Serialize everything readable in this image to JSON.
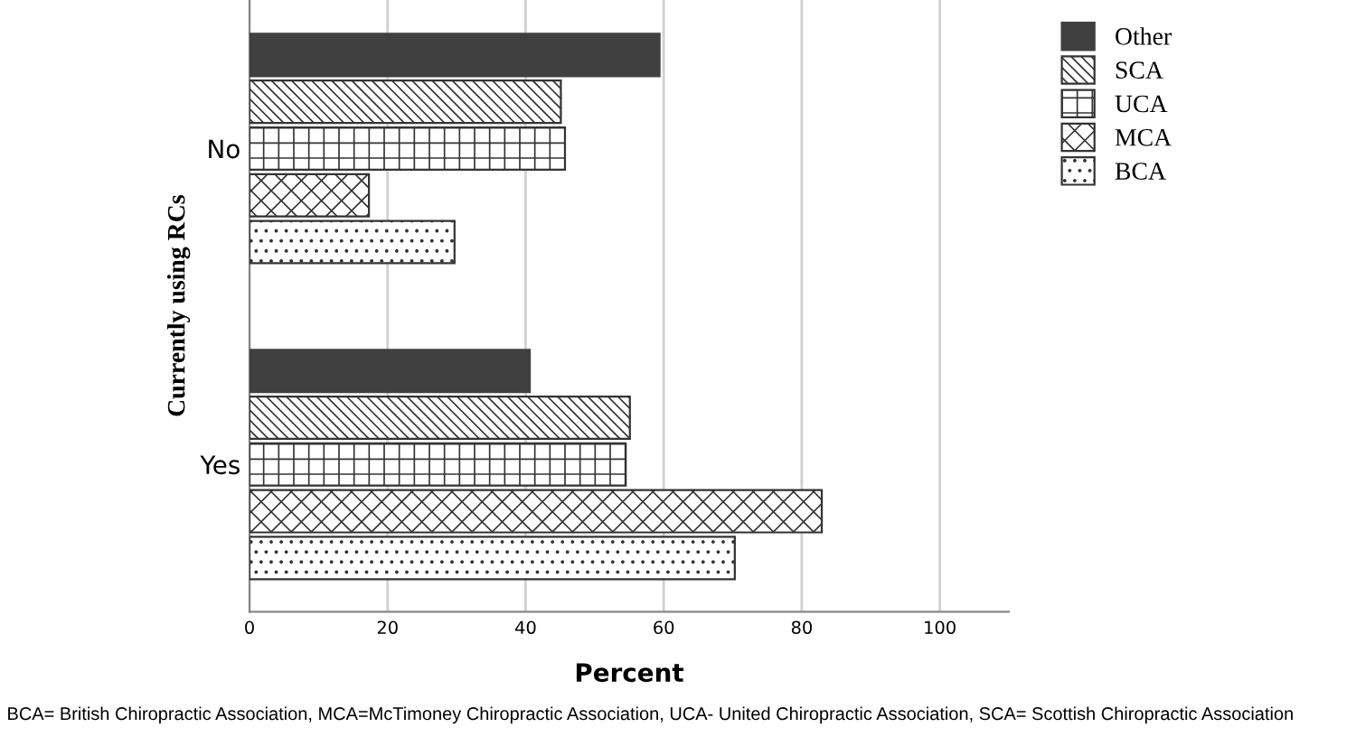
{
  "chart_data": {
    "type": "bar",
    "orientation": "horizontal",
    "ylabel": "Currently using RCs",
    "xlabel": "Percent",
    "categories": [
      "No",
      "Yes"
    ],
    "series": [
      {
        "name": "Other",
        "color": "#404040",
        "values": [
          59.4,
          40.6
        ]
      },
      {
        "name": "SCA",
        "color": "#333333",
        "values": [
          45.1,
          55.1
        ]
      },
      {
        "name": "UCA",
        "color": "#333333",
        "values": [
          45.7,
          54.5
        ]
      },
      {
        "name": "MCA",
        "color": "#333333",
        "values": [
          17.3,
          82.9
        ]
      },
      {
        "name": "BCA",
        "color": "#333333",
        "values": [
          29.7,
          70.3
        ]
      }
    ],
    "xlim": [
      0,
      110
    ],
    "xticks": [
      0,
      20,
      40,
      60,
      80,
      100
    ],
    "grid": "x",
    "legend": "top right",
    "annotations": [
      "BCA= British Chiropractic Association, MCA=McTimoney Chiropractic Association, UCA- United Chiropractic Association, SCA= Scottish Chiropractic Association"
    ]
  }
}
